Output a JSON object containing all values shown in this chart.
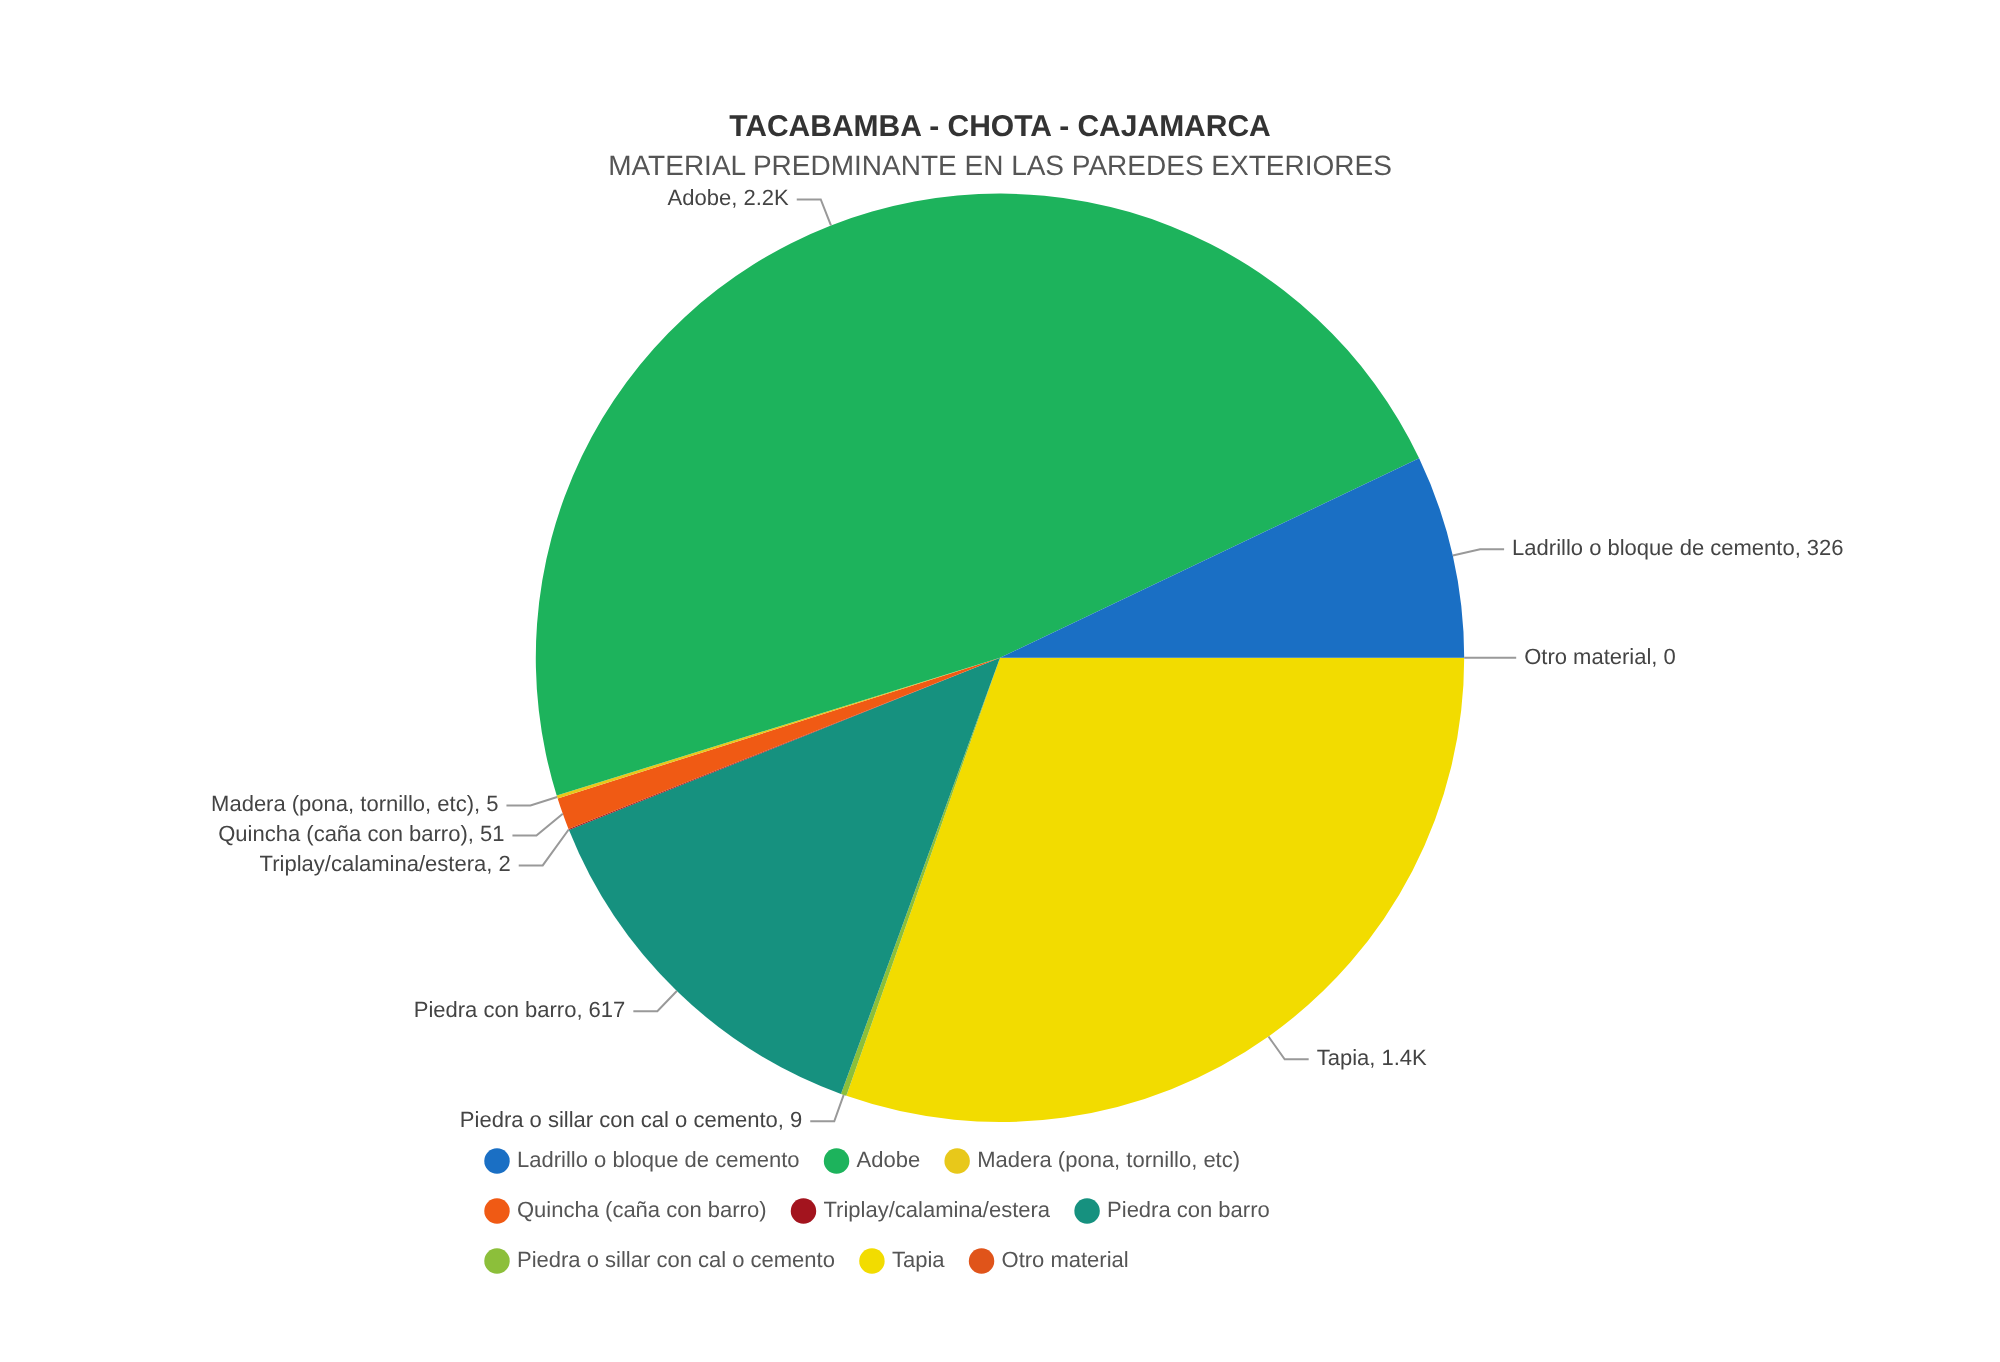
{
  "chart_data": {
    "type": "pie",
    "title": "TACABAMBA - CHOTA - CAJAMARCA",
    "subtitle": "MATERIAL PREDMINANTE EN LAS PAREDES EXTERIORES",
    "categories": [
      "Ladrillo o bloque de cemento",
      "Adobe",
      "Madera (pona, tornillo, etc)",
      "Quincha (caña con barro)",
      "Triplay/calamina/estera",
      "Piedra con barro",
      "Piedra o sillar con cal o cemento",
      "Tapia",
      "Otro material"
    ],
    "values": [
      326,
      2200,
      5,
      51,
      2,
      617,
      9,
      1400,
      0
    ],
    "value_labels": [
      "Ladrillo o bloque de cemento, 326",
      "Adobe, 2.2K",
      "Madera (pona, tornillo, etc), 5",
      "Quincha (caña con barro), 51",
      "Triplay/calamina/estera, 2",
      "Piedra con barro, 617",
      "Piedra o sillar con cal o cemento, 9",
      "Tapia, 1.4K",
      "Otro material, 0"
    ],
    "colors": [
      "#1a6fc4",
      "#1db35c",
      "#e8c81a",
      "#f05a14",
      "#a3141e",
      "#16917f",
      "#8cbf3a",
      "#f2dc00",
      "#e0541a"
    ],
    "legend": "bottom"
  }
}
